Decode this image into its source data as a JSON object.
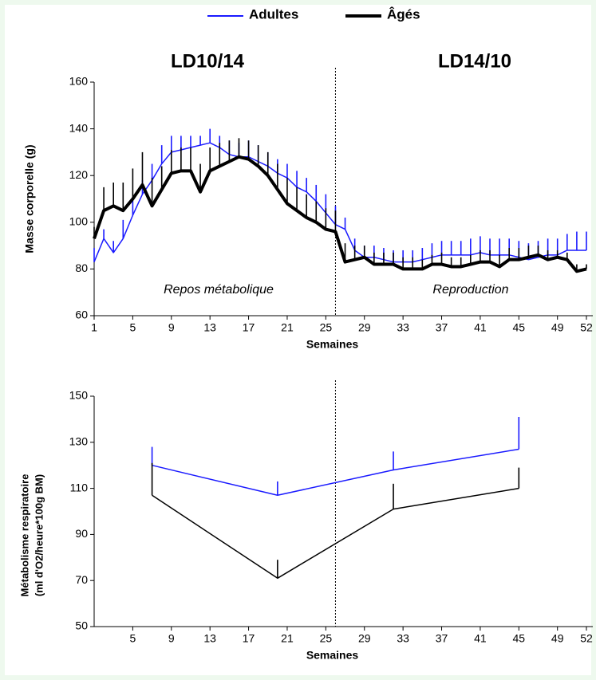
{
  "chart_data": [
    {
      "type": "line",
      "legend_position": "top",
      "period_labels": [
        "LD10/14",
        "LD14/10"
      ],
      "phase_labels": [
        "Repos métabolique",
        "Reproduction"
      ],
      "vline": 26,
      "xlabel": "Semaines",
      "ylabel": "Masse corporelle (g)",
      "xlim": [
        1,
        52
      ],
      "xticks": [
        1,
        5,
        9,
        13,
        17,
        21,
        25,
        29,
        33,
        37,
        41,
        45,
        49,
        52
      ],
      "ylim": [
        60,
        160
      ],
      "yticks": [
        60,
        80,
        100,
        120,
        140,
        160
      ],
      "x": [
        1,
        2,
        3,
        4,
        5,
        6,
        7,
        8,
        9,
        10,
        11,
        12,
        13,
        14,
        15,
        16,
        17,
        18,
        19,
        20,
        21,
        22,
        23,
        24,
        25,
        26,
        27,
        28,
        29,
        30,
        31,
        32,
        33,
        34,
        35,
        36,
        37,
        38,
        39,
        40,
        41,
        42,
        43,
        44,
        45,
        46,
        47,
        48,
        49,
        50,
        51,
        52
      ],
      "series": [
        {
          "name": "Adultes",
          "color": "#1a1aff",
          "values": [
            83,
            93,
            87,
            93,
            103,
            112,
            118,
            125,
            130,
            131,
            132,
            133,
            134,
            132,
            129,
            128,
            128,
            126,
            124,
            121,
            119,
            115,
            113,
            109,
            104,
            99,
            97,
            88,
            85,
            85,
            84,
            83,
            83,
            83,
            84,
            85,
            86,
            86,
            86,
            86,
            87,
            86,
            86,
            86,
            85,
            84,
            85,
            86,
            86,
            88,
            88,
            88
          ],
          "errors": [
            6,
            4,
            5,
            8,
            7,
            6,
            7,
            8,
            7,
            6,
            5,
            4,
            6,
            5,
            6,
            6,
            7,
            7,
            6,
            6,
            6,
            7,
            6,
            7,
            8,
            8,
            5,
            5,
            5,
            5,
            5,
            5,
            5,
            5,
            5,
            6,
            6,
            6,
            6,
            7,
            7,
            7,
            7,
            7,
            7,
            7,
            7,
            7,
            7,
            7,
            8,
            8
          ]
        },
        {
          "name": "Âgés",
          "color": "#000000",
          "values": [
            93,
            105,
            107,
            105,
            110,
            116,
            107,
            114,
            121,
            122,
            122,
            113,
            122,
            124,
            126,
            128,
            127,
            124,
            120,
            114,
            108,
            105,
            102,
            100,
            97,
            96,
            83,
            84,
            85,
            82,
            82,
            82,
            80,
            80,
            80,
            82,
            82,
            81,
            81,
            82,
            83,
            83,
            81,
            84,
            84,
            85,
            86,
            84,
            85,
            84,
            79,
            80
          ],
          "errors": [
            5,
            10,
            10,
            12,
            13,
            14,
            12,
            10,
            10,
            10,
            10,
            12,
            10,
            10,
            9,
            8,
            8,
            9,
            10,
            11,
            11,
            10,
            10,
            9,
            9,
            9,
            8,
            6,
            5,
            5,
            5,
            5,
            5,
            5,
            4,
            4,
            5,
            4,
            4,
            4,
            5,
            5,
            5,
            5,
            5,
            5,
            4,
            4,
            3,
            3,
            3,
            2
          ]
        }
      ]
    },
    {
      "type": "line",
      "vline": 26,
      "xlabel": "Semaines",
      "ylabel": [
        "Métabolisme respiratoire",
        "(ml d'O2/heure*100g BM)"
      ],
      "xlim": [
        1,
        52
      ],
      "xticks": [
        5,
        9,
        13,
        17,
        21,
        25,
        29,
        33,
        37,
        41,
        45,
        49,
        52
      ],
      "ylim": [
        50,
        150
      ],
      "yticks": [
        50,
        70,
        90,
        110,
        130,
        150
      ],
      "x": [
        7,
        20,
        32,
        45
      ],
      "series": [
        {
          "name": "Adultes",
          "color": "#1a1aff",
          "values": [
            120,
            107,
            118,
            127
          ],
          "errors": [
            8,
            6,
            8,
            14
          ]
        },
        {
          "name": "Âgés",
          "color": "#000000",
          "values": [
            107,
            71,
            101,
            110
          ],
          "errors": [
            14,
            8,
            11,
            9
          ]
        }
      ]
    }
  ]
}
